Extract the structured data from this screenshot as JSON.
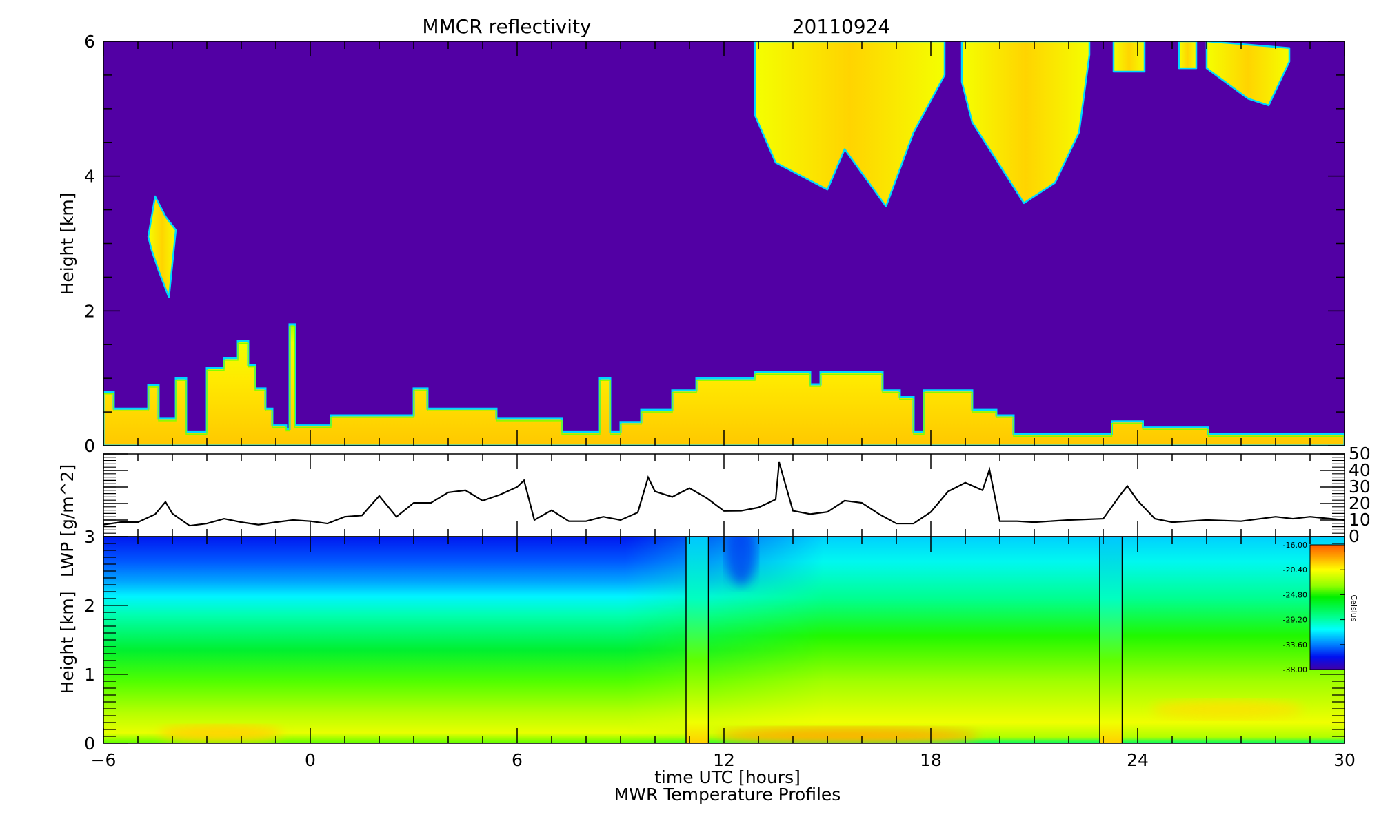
{
  "chart_data": [
    {
      "type": "heatmap",
      "title": "MMCR reflectivity",
      "date": "20110924",
      "ylabel": "Height [km]",
      "xlim": [
        -6,
        30
      ],
      "ylim": [
        0,
        6
      ],
      "yticks": [
        0,
        2,
        4,
        6
      ],
      "colors": {
        "background": "#5200a4",
        "cloud": "#f8ff00",
        "cloud_core": "#ffc400",
        "cloud_edge": "#00d8ff",
        "cloud_fringe": "#80ff00"
      },
      "low_cloud_top_km": [
        [
          -6,
          0.8
        ],
        [
          -5.7,
          0.55
        ],
        [
          -5,
          0.55
        ],
        [
          -4.7,
          0.9
        ],
        [
          -4.4,
          0.4
        ],
        [
          -4.1,
          0.4
        ],
        [
          -3.9,
          1.0
        ],
        [
          -3.6,
          0.2
        ],
        [
          -3.2,
          0.2
        ],
        [
          -3.0,
          1.15
        ],
        [
          -2.5,
          1.3
        ],
        [
          -2.1,
          1.55
        ],
        [
          -1.8,
          1.2
        ],
        [
          -1.6,
          0.85
        ],
        [
          -1.3,
          0.55
        ],
        [
          -1.1,
          0.3
        ],
        [
          -0.7,
          0.25
        ],
        [
          -0.6,
          1.8
        ],
        [
          -0.45,
          0.3
        ],
        [
          0.5,
          0.3
        ],
        [
          0.6,
          0.45
        ],
        [
          2.9,
          0.45
        ],
        [
          3.0,
          0.85
        ],
        [
          3.4,
          0.55
        ],
        [
          5.3,
          0.55
        ],
        [
          5.4,
          0.4
        ],
        [
          7.1,
          0.4
        ],
        [
          7.3,
          0.2
        ],
        [
          8.2,
          0.2
        ],
        [
          8.4,
          1.0
        ],
        [
          8.7,
          0.2
        ],
        [
          9.0,
          0.35
        ],
        [
          9.6,
          0.53
        ],
        [
          10.5,
          0.82
        ],
        [
          11.2,
          1.0
        ],
        [
          12.9,
          1.09
        ],
        [
          14.0,
          1.09
        ],
        [
          14.5,
          0.91
        ],
        [
          14.8,
          1.09
        ],
        [
          15.8,
          1.09
        ],
        [
          16.6,
          0.82
        ],
        [
          17.1,
          0.72
        ],
        [
          17.5,
          0.2
        ],
        [
          17.8,
          0.82
        ],
        [
          18.6,
          0.82
        ],
        [
          19.2,
          0.53
        ],
        [
          19.9,
          0.45
        ],
        [
          20.3,
          0.45
        ],
        [
          20.4,
          0.17
        ],
        [
          23.2,
          0.17
        ],
        [
          23.25,
          0.36
        ],
        [
          24.1,
          0.36
        ],
        [
          24.15,
          0.27
        ],
        [
          26.0,
          0.27
        ],
        [
          26.05,
          0.17
        ],
        [
          30,
          0.17
        ]
      ],
      "upper_clouds": [
        {
          "t": [
            -4.7,
            -4.5,
            -4.2,
            -3.9,
            -4.1,
            -4.4,
            -4.6
          ],
          "h": [
            3.1,
            3.7,
            3.4,
            3.2,
            2.2,
            2.6,
            2.9
          ]
        },
        {
          "t": [
            12.9,
            12.9,
            13.5,
            15.0,
            15.5,
            16.7,
            17.5,
            18.4,
            18.4
          ],
          "h": [
            6,
            4.9,
            4.2,
            3.8,
            4.4,
            3.55,
            4.65,
            5.5,
            6
          ]
        },
        {
          "t": [
            18.9,
            18.9,
            19.2,
            20.7,
            21.6,
            22.3,
            22.6,
            22.6
          ],
          "h": [
            6,
            5.4,
            4.8,
            3.6,
            3.9,
            4.65,
            5.8,
            6
          ]
        },
        {
          "t": [
            23.3,
            23.3,
            24.2,
            24.2
          ],
          "h": [
            6,
            5.55,
            5.55,
            6
          ]
        },
        {
          "t": [
            25.2,
            25.2,
            25.7,
            25.7
          ],
          "h": [
            6,
            5.6,
            5.6,
            6
          ]
        },
        {
          "t": [
            26.0,
            26.0,
            27.2,
            27.8,
            28.4,
            28.4
          ],
          "h": [
            6,
            5.6,
            5.15,
            5.05,
            5.7,
            5.9
          ]
        }
      ]
    },
    {
      "type": "line",
      "ylabel": "LWP [g/m^2]",
      "xlim": [
        -6,
        30
      ],
      "ylim": [
        0,
        50
      ],
      "yticks": [
        0,
        10,
        20,
        30,
        40,
        50
      ],
      "x": [
        -6,
        -5.5,
        -5,
        -4.5,
        -4.2,
        -4,
        -3.5,
        -3,
        -2.5,
        -2,
        -1.5,
        -1,
        -0.5,
        0,
        0.5,
        1,
        1.5,
        2,
        2.5,
        3,
        3.5,
        4,
        4.5,
        5,
        5.5,
        6,
        6.2,
        6.5,
        7,
        7.5,
        8,
        8.5,
        9,
        9.5,
        9.8,
        10,
        10.5,
        11,
        11.5,
        12,
        12.5,
        13,
        13.5,
        13.6,
        14,
        14.5,
        15,
        15.5,
        16,
        16.5,
        17,
        17.5,
        18,
        18.5,
        19,
        19.5,
        19.7,
        20,
        20.5,
        21,
        22,
        23,
        23.5,
        23.7,
        24,
        24.5,
        25,
        26,
        27,
        28,
        28.5,
        29,
        30
      ],
      "y": [
        7.2,
        8.7,
        8.7,
        13.5,
        21,
        13.9,
        6.6,
        7.9,
        10.8,
        8.7,
        7.2,
        8.7,
        10,
        9.3,
        7.9,
        12,
        12.8,
        24.6,
        12,
        20.4,
        20.4,
        26.7,
        28,
        21.7,
        25.3,
        30,
        34,
        10,
        15.9,
        9.3,
        9.3,
        12,
        10,
        14.6,
        35.8,
        27.3,
        24,
        29.3,
        23.3,
        15.5,
        15.6,
        17.6,
        22.5,
        45,
        15.6,
        13.6,
        14.9,
        21.7,
        20.4,
        13.6,
        7.9,
        7.9,
        14.9,
        27.3,
        32.6,
        28,
        40.5,
        9.3,
        9.3,
        8.7,
        10,
        10.8,
        25.3,
        30.6,
        21.7,
        10.8,
        8.7,
        10,
        9.3,
        12,
        10.8,
        12,
        10
      ],
      "color": "#000000"
    },
    {
      "type": "heatmap",
      "ylabel": "Height [km]",
      "xlabel": "time UTC [hours]",
      "subtitle": "MWR Temperature Profiles",
      "xlim": [
        -6,
        30
      ],
      "xticks": [
        -6,
        0,
        6,
        12,
        18,
        24,
        30
      ],
      "xticklabels": [
        "−6",
        "0",
        "6",
        "12",
        "18",
        "24",
        "30"
      ],
      "ylim": [
        0,
        3
      ],
      "yticks": [
        0,
        1,
        2,
        3
      ],
      "data_gaps_hours": [
        [
          10.9,
          11.55
        ],
        [
          22.9,
          23.55
        ]
      ],
      "colorbar": {
        "label": "Celsius",
        "range": [
          -38.0,
          -16.0
        ],
        "ticks": [
          "-16.00",
          "-20.40",
          "-24.80",
          "-29.20",
          "-33.60",
          "-38.00"
        ],
        "tick_values": [
          -16.0,
          -20.4,
          -24.8,
          -29.2,
          -33.6,
          -38.0
        ]
      }
    }
  ]
}
